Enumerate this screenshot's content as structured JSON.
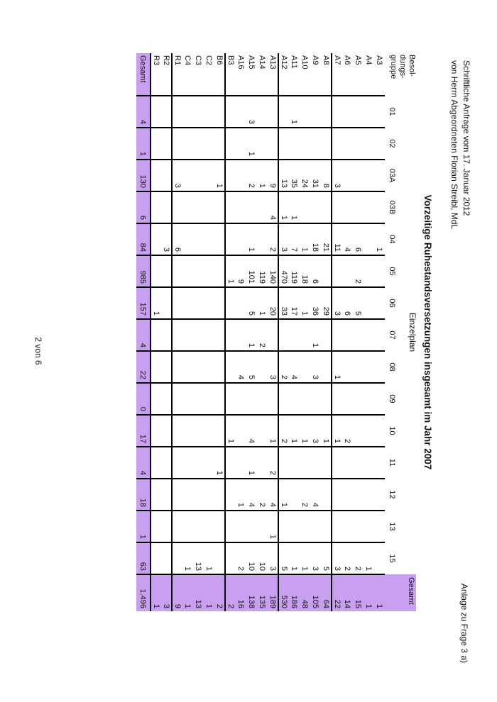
{
  "page": {
    "request_line1": "Schriftliche Anfrage vom 17. Januar 2012",
    "request_line2": "von Herrn Abgeordneten Florian Streibl, MdL",
    "attachment_note": "Anlage zu Frage 3 a)",
    "title": "Vorzeitige Ruhestandsversetzungen insgesamt im Jahr 2007",
    "subtitle": "Einzelplan",
    "page_number": "2 von 6"
  },
  "colors": {
    "highlight": "#c8a0ef",
    "grid": "#000000"
  },
  "table": {
    "corner_label_lines": [
      "Besol-",
      "dungs-",
      "gruppe"
    ],
    "columns": [
      "01",
      "02",
      "03A",
      "03B",
      "04",
      "05",
      "06",
      "07",
      "08",
      "09",
      "10",
      "11",
      "12",
      "13",
      "15"
    ],
    "total_column_label": "Gesamt",
    "total_row_label": "Gesamt",
    "group_start_rows": [
      "A8",
      "A13",
      "B6",
      "R2"
    ],
    "rows": [
      {
        "label": "A3",
        "values": [
          "",
          "",
          "",
          "",
          "1",
          "",
          "",
          "",
          "",
          "",
          "",
          "",
          "",
          "",
          ""
        ],
        "total": "1"
      },
      {
        "label": "A4",
        "values": [
          "",
          "",
          "",
          "",
          "",
          "",
          "",
          "",
          "",
          "",
          "",
          "",
          "",
          "",
          "1"
        ],
        "total": "1"
      },
      {
        "label": "A5",
        "values": [
          "",
          "",
          "",
          "",
          "6",
          "2",
          "5",
          "",
          "",
          "",
          "",
          "",
          "",
          "",
          "2"
        ],
        "total": "15"
      },
      {
        "label": "A6",
        "values": [
          "",
          "",
          "",
          "",
          "4",
          "",
          "6",
          "",
          "",
          "",
          "2",
          "",
          "",
          "",
          "2"
        ],
        "total": "14"
      },
      {
        "label": "A7",
        "values": [
          "",
          "",
          "3",
          "",
          "11",
          "",
          "3",
          "",
          "1",
          "",
          "1",
          "",
          "",
          "",
          "3"
        ],
        "total": "22"
      },
      {
        "label": "A8",
        "values": [
          "",
          "",
          "8",
          "",
          "21",
          "",
          "29",
          "",
          "",
          "",
          "1",
          "",
          "",
          "",
          "5"
        ],
        "total": "64"
      },
      {
        "label": "A9",
        "values": [
          "",
          "",
          "31",
          "",
          "18",
          "6",
          "36",
          "1",
          "3",
          "",
          "3",
          "",
          "4",
          "",
          "3"
        ],
        "total": "105"
      },
      {
        "label": "A10",
        "values": [
          "",
          "",
          "24",
          "",
          "1",
          "18",
          "1",
          "",
          "",
          "",
          "1",
          "",
          "2",
          "",
          "1"
        ],
        "total": "48"
      },
      {
        "label": "A11",
        "values": [
          "1",
          "",
          "35",
          "1",
          "7",
          "119",
          "17",
          "",
          "4",
          "",
          "1",
          "",
          "",
          "",
          "1"
        ],
        "total": "186"
      },
      {
        "label": "A12",
        "values": [
          "",
          "",
          "13",
          "1",
          "3",
          "470",
          "33",
          "",
          "2",
          "",
          "2",
          "",
          "1",
          "",
          "5"
        ],
        "total": "530"
      },
      {
        "label": "A13",
        "values": [
          "",
          "",
          "9",
          "4",
          "2",
          "140",
          "20",
          "",
          "3",
          "",
          "1",
          "2",
          "4",
          "1",
          "3"
        ],
        "total": "189"
      },
      {
        "label": "A14",
        "values": [
          "",
          "",
          "1",
          "",
          "",
          "119",
          "1",
          "2",
          "",
          "",
          "",
          "",
          "2",
          "",
          "10"
        ],
        "total": "135"
      },
      {
        "label": "A15",
        "values": [
          "3",
          "1",
          "2",
          "",
          "1",
          "101",
          "5",
          "1",
          "5",
          "",
          "4",
          "1",
          "4",
          "",
          "10"
        ],
        "total": "138"
      },
      {
        "label": "A16",
        "values": [
          "",
          "",
          "",
          "",
          "",
          "9",
          "",
          "",
          "4",
          "",
          "",
          "",
          "1",
          "",
          "2"
        ],
        "total": "16"
      },
      {
        "label": "B3",
        "values": [
          "",
          "",
          "",
          "",
          "",
          "1",
          "",
          "",
          "",
          "",
          "1",
          "",
          "",
          "",
          ""
        ],
        "total": "2"
      },
      {
        "label": "B6",
        "values": [
          "",
          "",
          "1",
          "",
          "",
          "",
          "",
          "",
          "",
          "",
          "",
          "1",
          "",
          "",
          ""
        ],
        "total": "2"
      },
      {
        "label": "C2",
        "values": [
          "",
          "",
          "",
          "",
          "",
          "",
          "",
          "",
          "",
          "",
          "",
          "",
          "",
          "",
          "1"
        ],
        "total": "1"
      },
      {
        "label": "C3",
        "values": [
          "",
          "",
          "",
          "",
          "",
          "",
          "",
          "",
          "",
          "",
          "",
          "",
          "",
          "",
          "13"
        ],
        "total": "13"
      },
      {
        "label": "C4",
        "values": [
          "",
          "",
          "",
          "",
          "",
          "",
          "",
          "",
          "",
          "",
          "",
          "",
          "",
          "",
          "1"
        ],
        "total": "1"
      },
      {
        "label": "R1",
        "values": [
          "",
          "",
          "3",
          "",
          "6",
          "",
          "",
          "",
          "",
          "",
          "",
          "",
          "",
          "",
          ""
        ],
        "total": "9"
      },
      {
        "label": "R2",
        "values": [
          "",
          "",
          "",
          "",
          "3",
          "",
          "",
          "",
          "",
          "",
          "",
          "",
          "",
          "",
          ""
        ],
        "total": "3"
      },
      {
        "label": "R3",
        "values": [
          "",
          "",
          "",
          "",
          "",
          "",
          "1",
          "",
          "",
          "",
          "",
          "",
          "",
          "",
          ""
        ],
        "total": "1"
      }
    ],
    "totals": {
      "values": [
        "4",
        "1",
        "130",
        "6",
        "84",
        "985",
        "157",
        "4",
        "22",
        "0",
        "17",
        "4",
        "18",
        "1",
        "63"
      ],
      "grand_total": "1.496"
    }
  }
}
